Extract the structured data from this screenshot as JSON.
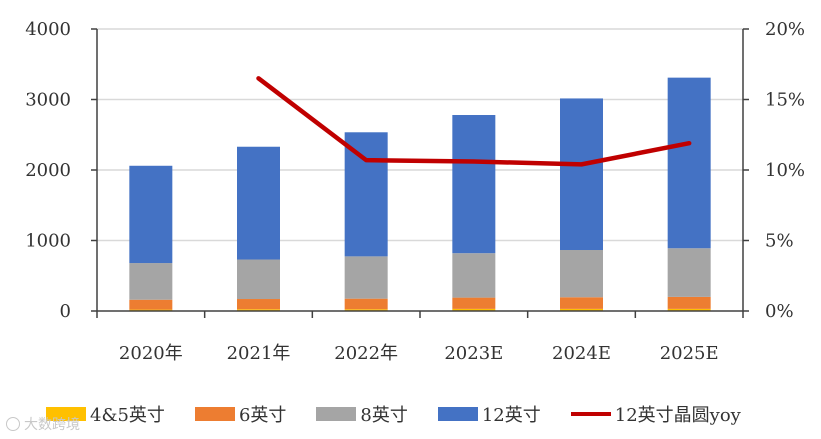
{
  "chart_data": {
    "type": "bar",
    "stacked": true,
    "categories": [
      "2020年",
      "2021年",
      "2022年",
      "2023E",
      "2024E",
      "2025E"
    ],
    "series": [
      {
        "name": "4&5英寸",
        "type": "bar",
        "color": "#FFC000",
        "values": [
          20,
          25,
          25,
          30,
          30,
          30
        ]
      },
      {
        "name": "6英寸",
        "type": "bar",
        "color": "#ED7D31",
        "values": [
          140,
          145,
          150,
          160,
          165,
          170
        ]
      },
      {
        "name": "8英寸",
        "type": "bar",
        "color": "#A5A5A5",
        "values": [
          520,
          560,
          600,
          630,
          670,
          690
        ]
      },
      {
        "name": "12英寸",
        "type": "bar",
        "color": "#4472C4",
        "values": [
          1380,
          1600,
          1760,
          1960,
          2150,
          2420
        ]
      },
      {
        "name": "12英寸晶圆yoy",
        "type": "line",
        "axis": "right",
        "color": "#C00000",
        "values": [
          null,
          16.5,
          10.7,
          10.6,
          10.4,
          11.9
        ]
      }
    ],
    "y_left": {
      "ylim": [
        0,
        4000
      ],
      "ticks": [
        "0",
        "1000",
        "2000",
        "3000",
        "4000"
      ]
    },
    "y_right": {
      "ylim": [
        0,
        20
      ],
      "ticks": [
        "0%",
        "5%",
        "10%",
        "15%",
        "20%"
      ]
    },
    "grid": true,
    "legend_position": "bottom"
  },
  "watermark": "大数跨境"
}
